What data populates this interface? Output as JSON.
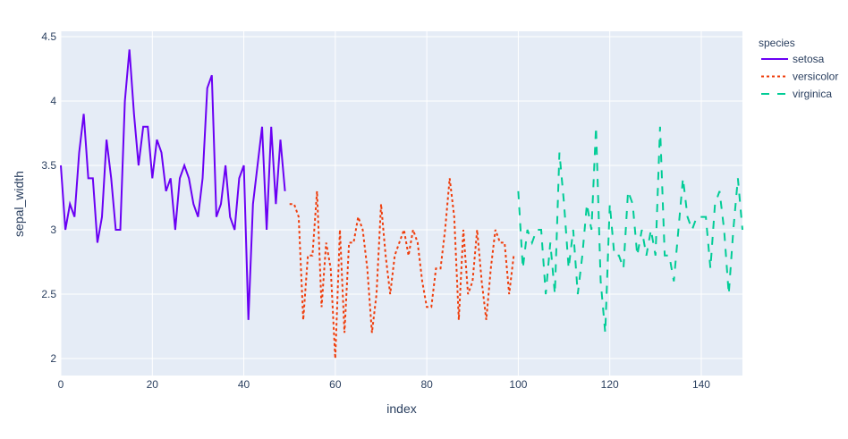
{
  "chart_data": {
    "type": "line",
    "title": "",
    "xlabel": "index",
    "ylabel": "sepal_width",
    "xlim": [
      0,
      149
    ],
    "ylim": [
      1.88,
      4.52
    ],
    "x_ticks": [
      0,
      20,
      40,
      60,
      80,
      100,
      120,
      140
    ],
    "y_ticks": [
      2,
      2.5,
      3,
      3.5,
      4,
      4.5
    ],
    "y_tick_labels": [
      "2",
      "2.5",
      "3",
      "3.5",
      "4",
      "4.5"
    ],
    "legend": {
      "title": "species",
      "position": "right"
    },
    "series": [
      {
        "name": "setosa",
        "color": "#636efa",
        "stroke": "#6a00f4",
        "dash": "solid",
        "x_start": 0,
        "values": [
          3.5,
          3.0,
          3.2,
          3.1,
          3.6,
          3.9,
          3.4,
          3.4,
          2.9,
          3.1,
          3.7,
          3.4,
          3.0,
          3.0,
          4.0,
          4.4,
          3.9,
          3.5,
          3.8,
          3.8,
          3.4,
          3.7,
          3.6,
          3.3,
          3.4,
          3.0,
          3.4,
          3.5,
          3.4,
          3.2,
          3.1,
          3.4,
          4.1,
          4.2,
          3.1,
          3.2,
          3.5,
          3.1,
          3.0,
          3.4,
          3.5,
          2.3,
          3.2,
          3.5,
          3.8,
          3.0,
          3.8,
          3.2,
          3.7,
          3.3
        ]
      },
      {
        "name": "versicolor",
        "stroke": "#ef3d0b",
        "dash": "dot",
        "x_start": 50,
        "values": [
          3.2,
          3.2,
          3.1,
          2.3,
          2.8,
          2.8,
          3.3,
          2.4,
          2.9,
          2.7,
          2.0,
          3.0,
          2.2,
          2.9,
          2.9,
          3.1,
          3.0,
          2.7,
          2.2,
          2.5,
          3.2,
          2.8,
          2.5,
          2.8,
          2.9,
          3.0,
          2.8,
          3.0,
          2.9,
          2.6,
          2.4,
          2.4,
          2.7,
          2.7,
          3.0,
          3.4,
          3.1,
          2.3,
          3.0,
          2.5,
          2.6,
          3.0,
          2.6,
          2.3,
          2.7,
          3.0,
          2.9,
          2.9,
          2.5,
          2.8
        ]
      },
      {
        "name": "virginica",
        "stroke": "#00cc96",
        "dash": "dash",
        "x_start": 100,
        "values": [
          3.3,
          2.7,
          3.0,
          2.9,
          3.0,
          3.0,
          2.5,
          2.9,
          2.5,
          3.6,
          3.2,
          2.7,
          3.0,
          2.5,
          2.8,
          3.2,
          3.0,
          3.8,
          2.6,
          2.2,
          3.2,
          2.8,
          2.8,
          2.7,
          3.3,
          3.2,
          2.8,
          3.0,
          2.8,
          3.0,
          2.8,
          3.8,
          2.8,
          2.8,
          2.6,
          3.0,
          3.4,
          3.1,
          3.0,
          3.1,
          3.1,
          3.1,
          2.7,
          3.2,
          3.3,
          3.0,
          2.5,
          3.0,
          3.4,
          3.0
        ]
      }
    ]
  }
}
